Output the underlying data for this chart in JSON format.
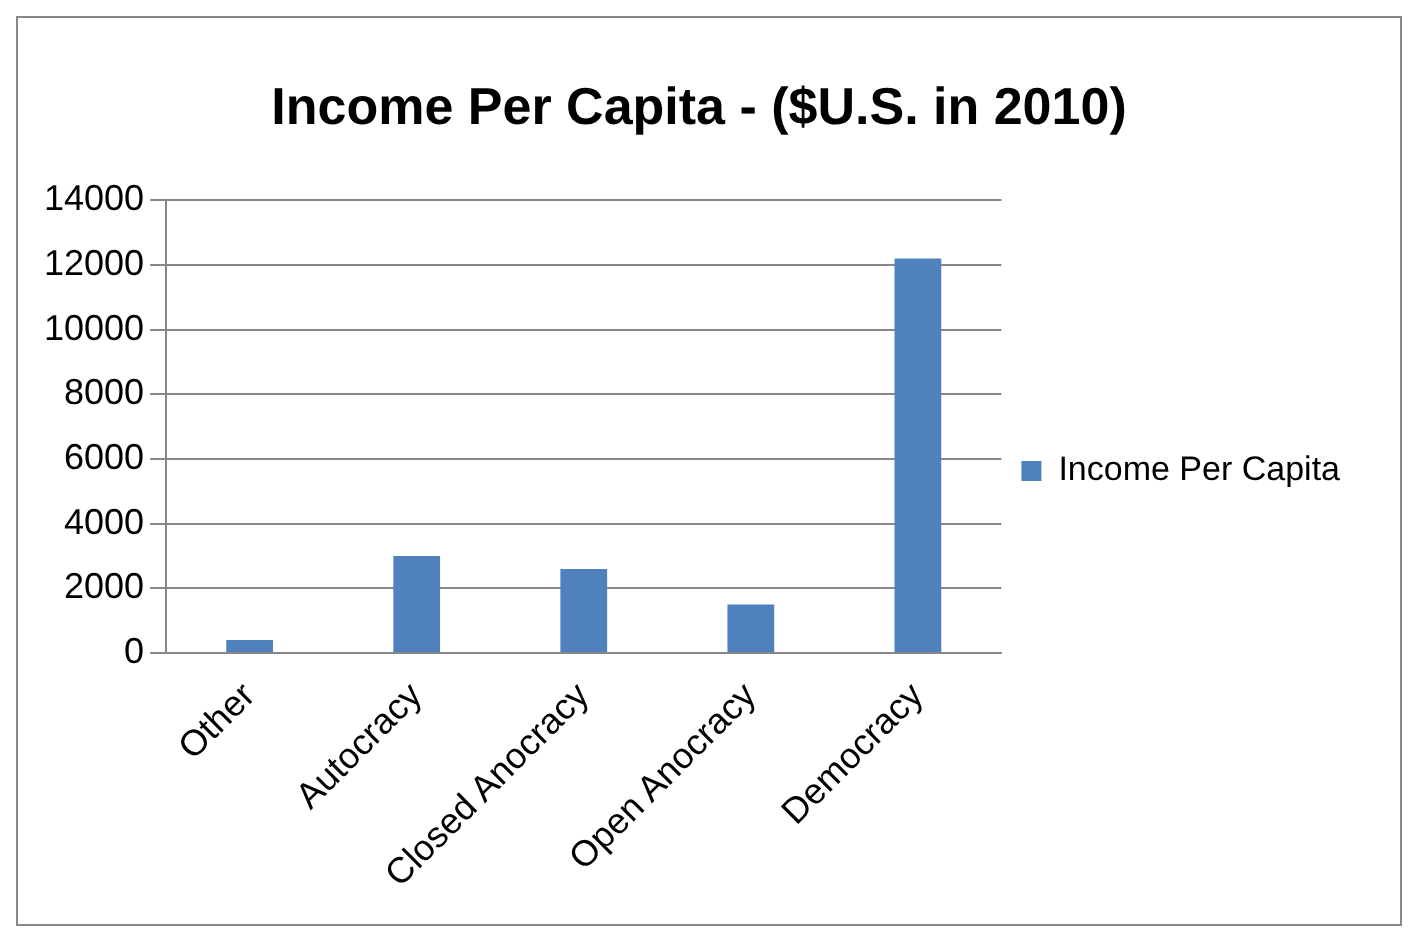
{
  "chart_data": {
    "type": "bar",
    "title": "Income Per Capita - ($U.S. in 2010)",
    "categories": [
      "Other",
      "Autocracy",
      "Closed Anocracy",
      "Open Anocracy",
      "Democracy"
    ],
    "series": [
      {
        "name": "Income Per Capita",
        "color": "#4f81bd",
        "values": [
          400,
          3000,
          2600,
          1500,
          12200
        ]
      }
    ],
    "ylim": [
      0,
      14000
    ],
    "yticks": [
      0,
      2000,
      4000,
      6000,
      8000,
      10000,
      12000,
      14000
    ],
    "grid": "y",
    "legend": "right"
  }
}
